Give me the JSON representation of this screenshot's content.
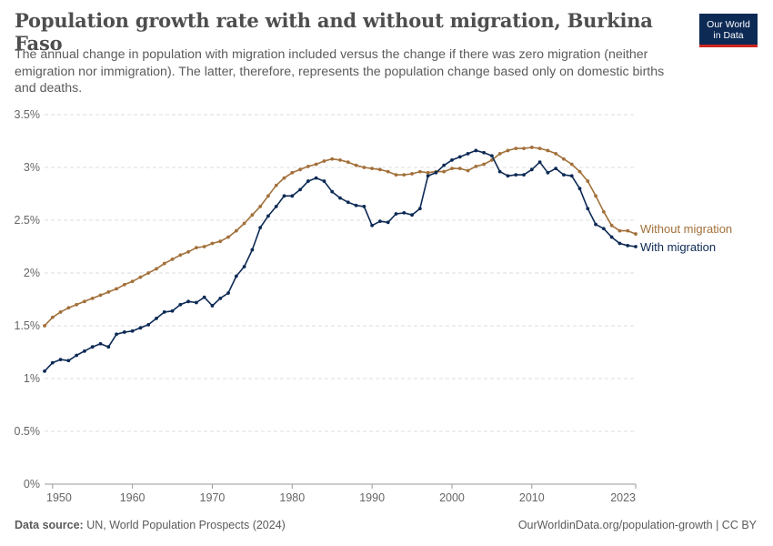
{
  "header": {
    "title": "Population growth rate with and without migration, Burkina Faso",
    "subtitle": "The annual change in population with migration included versus the change if there was zero migration (neither emigration nor immigration). The latter, therefore, represents the population change based only on domestic births and deaths."
  },
  "logo": {
    "line1": "Our World",
    "line2": "in Data"
  },
  "footer": {
    "source_label": "Data source:",
    "source_text": " UN, World Population Prospects (2024)",
    "right_text": "OurWorldinData.org/population-growth | CC BY"
  },
  "colors": {
    "without_migration": "#a2703a",
    "with_migration": "#0d2a55",
    "grid": "#dddddd",
    "axis": "#999999"
  },
  "chart_data": {
    "type": "line",
    "title": "Population growth rate with and without migration, Burkina Faso",
    "xlabel": "",
    "ylabel": "",
    "xlim": [
      1949,
      2023
    ],
    "ylim": [
      0,
      3.5
    ],
    "x_ticks": [
      1950,
      1960,
      1970,
      1980,
      1990,
      2000,
      2010,
      2023
    ],
    "y_ticks": [
      0,
      0.5,
      1,
      1.5,
      2,
      2.5,
      3,
      3.5
    ],
    "y_tick_labels": [
      "0%",
      "0.5%",
      "1%",
      "1.5%",
      "2%",
      "2.5%",
      "3%",
      "3.5%"
    ],
    "grid": true,
    "legend": "inline-right",
    "x": [
      1949,
      1950,
      1951,
      1952,
      1953,
      1954,
      1955,
      1956,
      1957,
      1958,
      1959,
      1960,
      1961,
      1962,
      1963,
      1964,
      1965,
      1966,
      1967,
      1968,
      1969,
      1970,
      1971,
      1972,
      1973,
      1974,
      1975,
      1976,
      1977,
      1978,
      1979,
      1980,
      1981,
      1982,
      1983,
      1984,
      1985,
      1986,
      1987,
      1988,
      1989,
      1990,
      1991,
      1992,
      1993,
      1994,
      1995,
      1996,
      1997,
      1998,
      1999,
      2000,
      2001,
      2002,
      2003,
      2004,
      2005,
      2006,
      2007,
      2008,
      2009,
      2010,
      2011,
      2012,
      2013,
      2014,
      2015,
      2016,
      2017,
      2018,
      2019,
      2020,
      2021,
      2022,
      2023
    ],
    "series": [
      {
        "name": "Without migration",
        "color": "#a2703a",
        "values": [
          1.5,
          1.58,
          1.63,
          1.67,
          1.7,
          1.73,
          1.76,
          1.79,
          1.82,
          1.85,
          1.89,
          1.92,
          1.96,
          2.0,
          2.04,
          2.09,
          2.13,
          2.17,
          2.2,
          2.24,
          2.25,
          2.28,
          2.3,
          2.34,
          2.4,
          2.47,
          2.55,
          2.63,
          2.73,
          2.83,
          2.9,
          2.95,
          2.98,
          3.01,
          3.03,
          3.06,
          3.08,
          3.07,
          3.05,
          3.02,
          3.0,
          2.99,
          2.98,
          2.96,
          2.93,
          2.93,
          2.94,
          2.96,
          2.95,
          2.96,
          2.96,
          2.99,
          2.99,
          2.97,
          3.01,
          3.03,
          3.07,
          3.13,
          3.16,
          3.18,
          3.18,
          3.19,
          3.18,
          3.16,
          3.13,
          3.08,
          3.03,
          2.96,
          2.87,
          2.73,
          2.58,
          2.45,
          2.4,
          2.4,
          2.37
        ]
      },
      {
        "name": "With migration",
        "color": "#0d2a55",
        "values": [
          1.07,
          1.15,
          1.18,
          1.17,
          1.22,
          1.26,
          1.3,
          1.33,
          1.3,
          1.42,
          1.44,
          1.45,
          1.48,
          1.51,
          1.57,
          1.63,
          1.64,
          1.7,
          1.73,
          1.72,
          1.77,
          1.69,
          1.76,
          1.81,
          1.97,
          2.06,
          2.22,
          2.43,
          2.54,
          2.63,
          2.73,
          2.73,
          2.79,
          2.87,
          2.9,
          2.87,
          2.77,
          2.71,
          2.67,
          2.64,
          2.63,
          2.45,
          2.49,
          2.48,
          2.56,
          2.57,
          2.55,
          2.61,
          2.92,
          2.95,
          3.02,
          3.07,
          3.1,
          3.13,
          3.16,
          3.14,
          3.11,
          2.96,
          2.92,
          2.93,
          2.93,
          2.98,
          3.05,
          2.95,
          2.99,
          2.93,
          2.92,
          2.8,
          2.61,
          2.46,
          2.42,
          2.34,
          2.28,
          2.26,
          2.25
        ]
      }
    ]
  }
}
